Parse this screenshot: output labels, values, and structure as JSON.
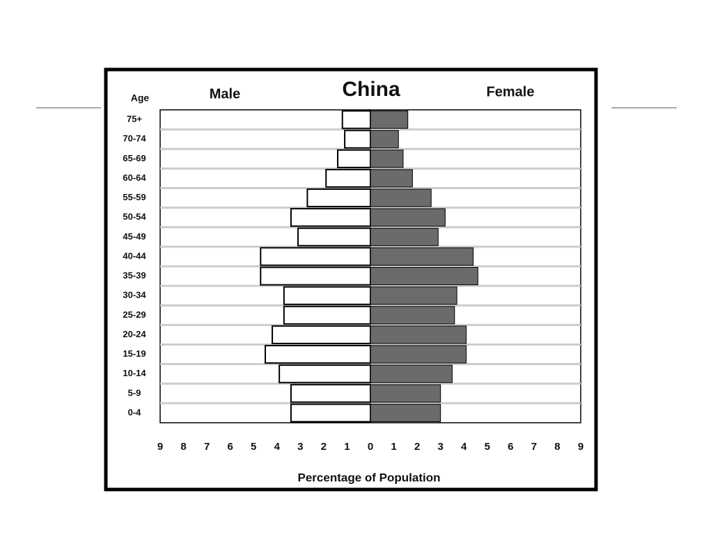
{
  "chart_data": {
    "type": "pyramid",
    "title": "China",
    "category_label": "Age",
    "x_label": "Percentage of Population",
    "categories": [
      "75+",
      "70-74",
      "65-69",
      "60-64",
      "55-59",
      "50-54",
      "45-49",
      "40-44",
      "35-39",
      "30-34",
      "25-29",
      "20-24",
      "15-19",
      "10-14",
      "5-9",
      "0-4"
    ],
    "series": [
      {
        "name": "Male",
        "color": "#ffffff",
        "values": [
          1.2,
          1.1,
          1.4,
          1.9,
          2.7,
          3.4,
          3.1,
          4.7,
          4.7,
          3.7,
          3.7,
          4.2,
          4.5,
          3.9,
          3.4,
          3.4
        ]
      },
      {
        "name": "Female",
        "color": "#6b6b6b",
        "values": [
          1.6,
          1.2,
          1.4,
          1.8,
          2.6,
          3.2,
          2.9,
          4.4,
          4.6,
          3.7,
          3.6,
          4.1,
          4.1,
          3.5,
          3.0,
          3.0
        ]
      }
    ],
    "xlim": [
      -9,
      9
    ],
    "xticks": [
      {
        "value": -9,
        "label": "9"
      },
      {
        "value": -8,
        "label": "8"
      },
      {
        "value": -7,
        "label": "7"
      },
      {
        "value": -6,
        "label": "6"
      },
      {
        "value": -5,
        "label": "5"
      },
      {
        "value": -4,
        "label": "4"
      },
      {
        "value": -3,
        "label": "3"
      },
      {
        "value": -2,
        "label": "2"
      },
      {
        "value": -1,
        "label": "1"
      },
      0,
      1,
      2,
      3,
      4,
      5,
      6,
      7,
      8,
      9
    ]
  }
}
